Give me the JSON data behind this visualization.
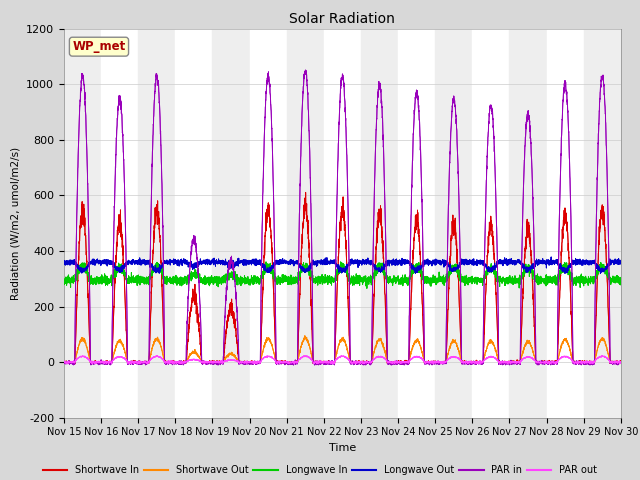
{
  "title": "Solar Radiation",
  "ylabel": "Radiation (W/m2, umol/m2/s)",
  "xlabel": "Time",
  "ylim": [
    -200,
    1200
  ],
  "xtick_labels": [
    "Nov 15",
    "Nov 16",
    "Nov 17",
    "Nov 18",
    "Nov 19",
    "Nov 20",
    "Nov 21",
    "Nov 22",
    "Nov 23",
    "Nov 24",
    "Nov 25",
    "Nov 26",
    "Nov 27",
    "Nov 28",
    "Nov 29",
    "Nov 30"
  ],
  "annotation_text": "WP_met",
  "annotation_color": "#aa0000",
  "annotation_bg": "#ffffcc",
  "background_color": "#d8d8d8",
  "plot_bg": "#ffffff",
  "n_days": 15,
  "colors": {
    "shortwave_in": "#dd0000",
    "shortwave_out": "#ff8800",
    "longwave_in": "#00cc00",
    "longwave_out": "#0000cc",
    "par_in": "#9900bb",
    "par_out": "#ff44ff"
  },
  "legend_labels": [
    "Shortwave In",
    "Shortwave Out",
    "Longwave In",
    "Longwave Out",
    "PAR in",
    "PAR out"
  ],
  "day_peak_hours": [
    7.0,
    17.0
  ],
  "cloud_factors": [
    0.98,
    0.9,
    0.98,
    0.42,
    0.35,
    0.98,
    1.0,
    0.98,
    0.95,
    0.92,
    0.9,
    0.88,
    0.85,
    0.95,
    0.98
  ],
  "par_peak": 1050,
  "sw_in_peak": 560,
  "sw_out_peak": 85,
  "lw_in_night": 295,
  "lw_in_day_add": 50,
  "lw_out_night": 360,
  "lw_out_day_sub": 30,
  "pts_per_day": 288,
  "seed": 10
}
